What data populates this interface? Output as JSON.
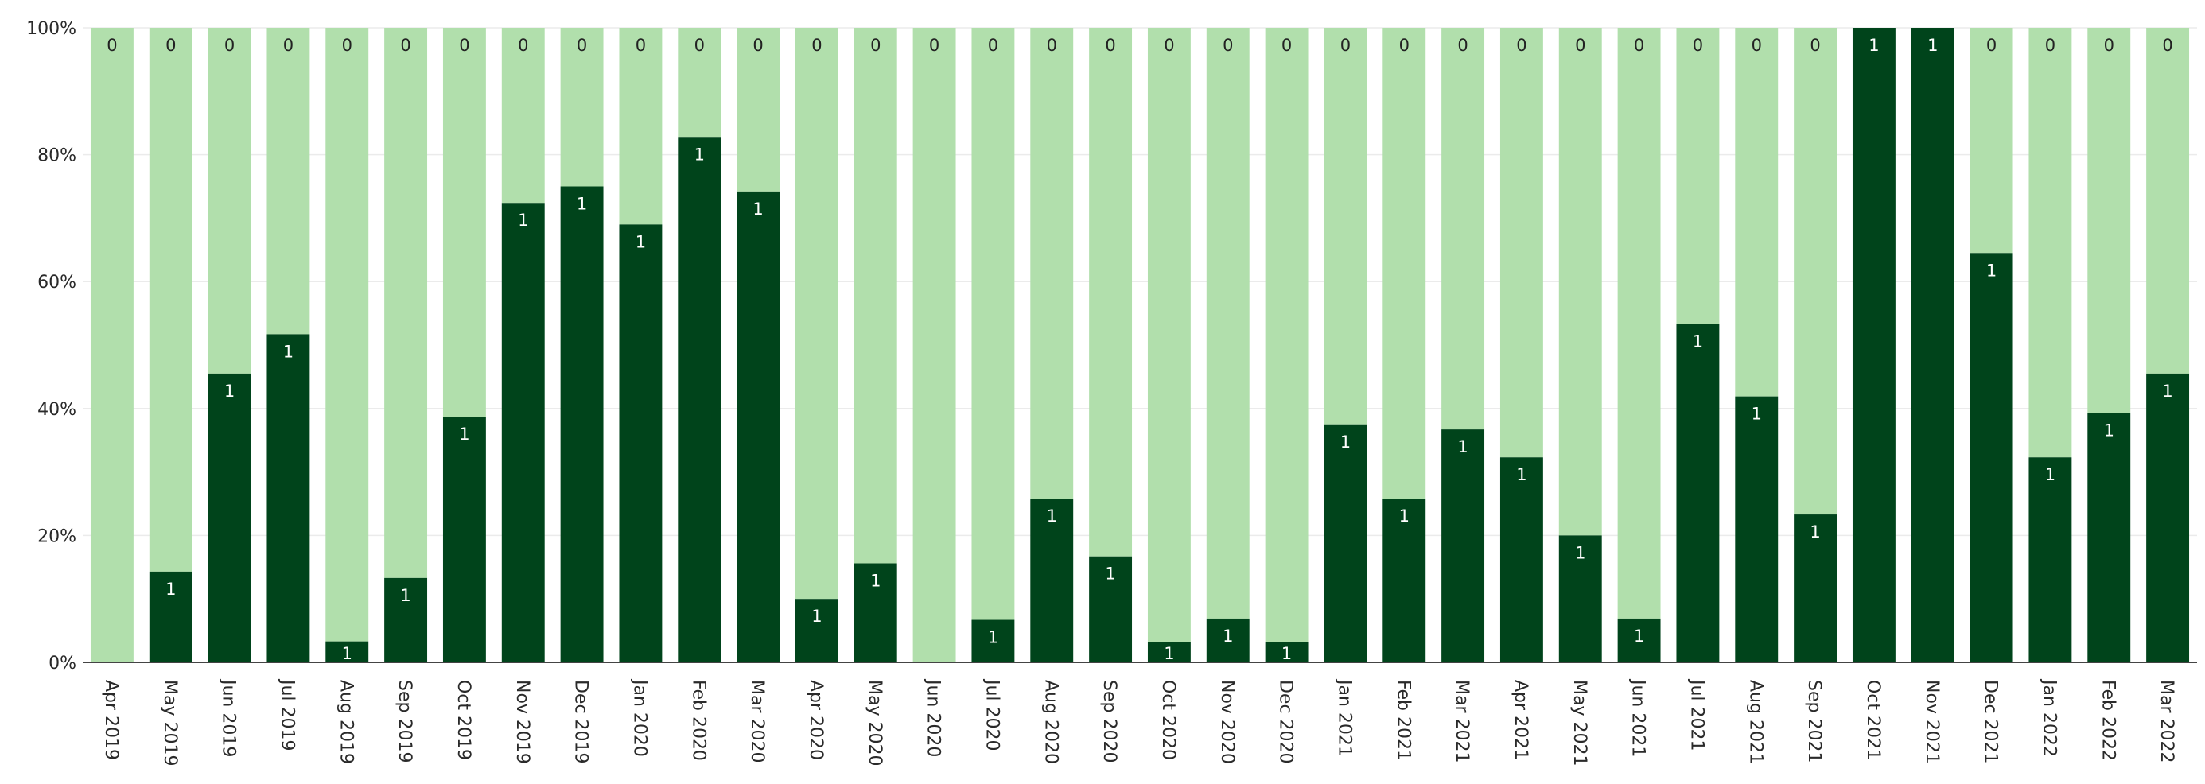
{
  "chart_data": {
    "type": "bar",
    "stacked": true,
    "normalized": true,
    "categories": [
      "Apr 2019",
      "May 2019",
      "Jun 2019",
      "Jul 2019",
      "Aug 2019",
      "Sep 2019",
      "Oct 2019",
      "Nov 2019",
      "Dec 2019",
      "Jan 2020",
      "Feb 2020",
      "Mar 2020",
      "Apr 2020",
      "May 2020",
      "Jun 2020",
      "Jul 2020",
      "Aug 2020",
      "Sep 2020",
      "Oct 2020",
      "Nov 2020",
      "Dec 2020",
      "Jan 2021",
      "Feb 2021",
      "Mar 2021",
      "Apr 2021",
      "May 2021",
      "Jun 2021",
      "Jul 2021",
      "Aug 2021",
      "Sep 2021",
      "Oct 2021",
      "Nov 2021",
      "Dec 2021",
      "Jan 2022",
      "Feb 2022",
      "Mar 2022"
    ],
    "series": [
      {
        "color": "#00441b",
        "values": [
          0,
          14.3,
          45.5,
          51.7,
          3.3,
          13.3,
          38.7,
          72.4,
          75.0,
          69.0,
          82.8,
          74.2,
          10.0,
          15.6,
          0,
          6.7,
          25.8,
          16.7,
          3.2,
          6.9,
          3.2,
          37.5,
          25.8,
          36.7,
          32.3,
          20.0,
          6.9,
          53.3,
          41.9,
          23.3,
          100,
          100,
          64.5,
          32.3,
          39.3,
          45.5
        ],
        "labels": [
          "",
          "1",
          "1",
          "1",
          "1",
          "1",
          "1",
          "1",
          "1",
          "1",
          "1",
          "1",
          "1",
          "1",
          "",
          "1",
          "1",
          "1",
          "1",
          "1",
          "1",
          "1",
          "1",
          "1",
          "1",
          "1",
          "1",
          "1",
          "1",
          "1",
          "1",
          "1",
          "1",
          "1",
          "1",
          "1"
        ]
      },
      {
        "color": "#b1dfac",
        "labels": [
          "0",
          "0",
          "0",
          "0",
          "0",
          "0",
          "0",
          "0",
          "0",
          "0",
          "0",
          "0",
          "0",
          "0",
          "0",
          "0",
          "0",
          "0",
          "0",
          "0",
          "0",
          "0",
          "0",
          "0",
          "0",
          "0",
          "0",
          "0",
          "0",
          "0",
          "",
          "",
          "0",
          "0",
          "0",
          "0"
        ]
      }
    ],
    "yaxis": {
      "range": [
        0,
        100
      ],
      "ticks": [
        "0%",
        "20%",
        "40%",
        "60%",
        "80%",
        "100%"
      ]
    },
    "grid": true,
    "legend": "none"
  }
}
